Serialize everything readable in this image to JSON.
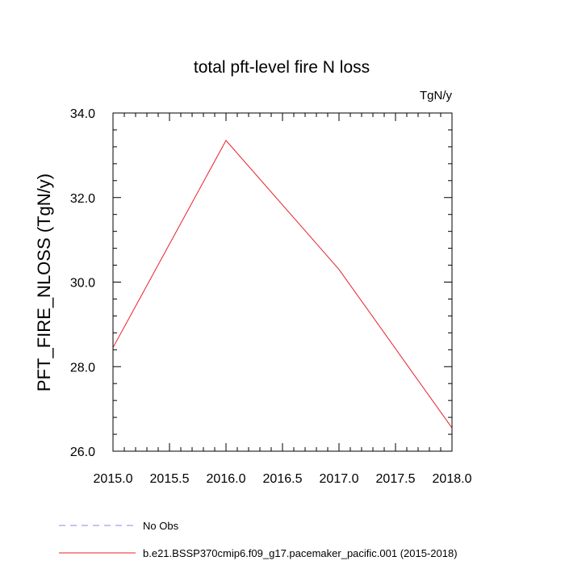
{
  "chart_data": {
    "type": "line",
    "title": "total pft-level fire N loss",
    "units_label": "TgN/y",
    "ylabel": "PFT_FIRE_NLOSS  (TgN/y)",
    "xlabel": "",
    "xlim": [
      2015.0,
      2018.0
    ],
    "ylim": [
      26.0,
      34.0
    ],
    "x_ticks": [
      2015.0,
      2015.5,
      2016.0,
      2016.5,
      2017.0,
      2017.5,
      2018.0
    ],
    "x_tick_labels": [
      "2015.0",
      "2015.5",
      "2016.0",
      "2016.5",
      "2017.0",
      "2017.5",
      "2018.0"
    ],
    "y_ticks": [
      26.0,
      28.0,
      30.0,
      32.0,
      34.0
    ],
    "y_tick_labels": [
      "26.0",
      "28.0",
      "30.0",
      "32.0",
      "34.0"
    ],
    "grid": false,
    "legend_position": "bottom",
    "series": [
      {
        "name": "b.e21.BSSP370cmip6.f09_g17.pacemaker_pacific.001 (2015-2018)",
        "color": "#e8202a",
        "dash": "solid",
        "x": [
          2015,
          2016,
          2017,
          2018
        ],
        "y": [
          28.45,
          33.35,
          30.3,
          26.55
        ]
      }
    ],
    "legend": [
      {
        "label": "No Obs",
        "color": "#8a8ae6",
        "dash": "dashed"
      },
      {
        "label": "b.e21.BSSP370cmip6.f09_g17.pacemaker_pacific.001 (2015-2018)",
        "color": "#e8202a",
        "dash": "solid"
      }
    ]
  }
}
